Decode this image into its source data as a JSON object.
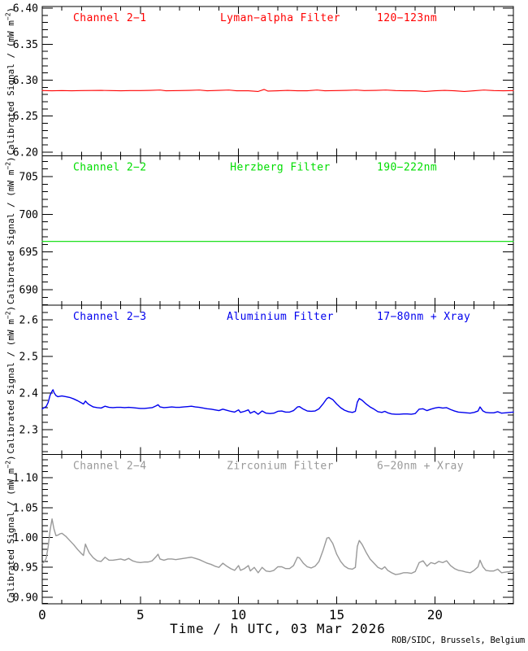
{
  "page": {
    "background": "#ffffff",
    "frame_color": "#000000",
    "text_color": "#000000"
  },
  "footer": {
    "credit": "ROB/SIDC, Brussels, Belgium"
  },
  "xaxis": {
    "title": "Time / h UTC, 03 Mar 2026",
    "range": [
      0,
      24
    ],
    "major_ticks": [
      0,
      5,
      10,
      15,
      20
    ],
    "major_tick_labels": [
      "0",
      "5",
      "10",
      "15",
      "20"
    ],
    "minor_step": 1
  },
  "ylabel": {
    "prefix": "Calibrated Signal / (mW m",
    "superscript": "−2",
    "suffix": ")"
  },
  "chart_data": [
    {
      "type": "line",
      "channel": "Channel 2−1",
      "filter": "Lyman−alpha Filter",
      "band": "120−123nm",
      "color": "#ff0000",
      "ylim": [
        6.1949,
        6.4023
      ],
      "yticks": [
        6.2,
        6.25,
        6.3,
        6.35,
        6.4
      ],
      "ytick_labels": [
        "6.20",
        "6.25",
        "6.30",
        "6.35",
        "6.40"
      ],
      "y_minor_step": 0.01,
      "points": [
        [
          0,
          6.2855
        ],
        [
          0.5,
          6.2853
        ],
        [
          1,
          6.2855
        ],
        [
          1.5,
          6.2853
        ],
        [
          2,
          6.2855
        ],
        [
          2.5,
          6.2857
        ],
        [
          3,
          6.2858
        ],
        [
          3.5,
          6.2855
        ],
        [
          4,
          6.2853
        ],
        [
          4.5,
          6.2855
        ],
        [
          5,
          6.2855
        ],
        [
          5.5,
          6.2858
        ],
        [
          6,
          6.2863
        ],
        [
          6.3,
          6.2853
        ],
        [
          7,
          6.2855
        ],
        [
          7.5,
          6.2858
        ],
        [
          8,
          6.2863
        ],
        [
          8.4,
          6.2853
        ],
        [
          9,
          6.2858
        ],
        [
          9.5,
          6.2863
        ],
        [
          9.9,
          6.2853
        ],
        [
          10.5,
          6.2853
        ],
        [
          11,
          6.2843
        ],
        [
          11.3,
          6.2871
        ],
        [
          11.5,
          6.2848
        ],
        [
          12,
          6.2853
        ],
        [
          12.5,
          6.2858
        ],
        [
          13,
          6.2853
        ],
        [
          13.5,
          6.2853
        ],
        [
          14,
          6.2863
        ],
        [
          14.4,
          6.2853
        ],
        [
          15,
          6.2855
        ],
        [
          15.5,
          6.2858
        ],
        [
          16,
          6.2863
        ],
        [
          16.4,
          6.2855
        ],
        [
          17,
          6.2858
        ],
        [
          17.5,
          6.2863
        ],
        [
          18,
          6.2855
        ],
        [
          18.5,
          6.2853
        ],
        [
          19,
          6.2853
        ],
        [
          19.5,
          6.2843
        ],
        [
          20,
          6.2853
        ],
        [
          20.5,
          6.2858
        ],
        [
          21,
          6.2853
        ],
        [
          21.5,
          6.2843
        ],
        [
          22,
          6.2853
        ],
        [
          22.5,
          6.2863
        ],
        [
          23,
          6.2855
        ],
        [
          23.5,
          6.2853
        ],
        [
          24,
          6.2855
        ]
      ]
    },
    {
      "type": "line",
      "channel": "Channel 2−2",
      "filter": "Herzberg Filter",
      "band": "190−222nm",
      "color": "#00dd00",
      "ylim": [
        687.95,
        707.75
      ],
      "yticks": [
        690,
        695,
        700,
        705
      ],
      "ytick_labels": [
        "690",
        "695",
        "700",
        "705"
      ],
      "y_minor_step": 1,
      "points": [
        [
          0,
          696.4
        ],
        [
          24,
          696.4
        ]
      ]
    },
    {
      "type": "line",
      "channel": "Channel 2−3",
      "filter": "Aluminium Filter",
      "band": "17−80nm + Xray",
      "color": "#0000ee",
      "ylim": [
        2.2322,
        2.64
      ],
      "yticks": [
        2.3,
        2.4,
        2.5,
        2.6
      ],
      "ytick_labels": [
        "2.3",
        "2.4",
        "2.5",
        "2.6"
      ],
      "y_minor_step": 0.02,
      "points": [
        [
          0,
          2.357
        ],
        [
          0.1,
          2.36
        ],
        [
          0.2,
          2.363
        ],
        [
          0.3,
          2.374
        ],
        [
          0.4,
          2.394
        ],
        [
          0.5,
          2.405
        ],
        [
          0.55,
          2.409
        ],
        [
          0.6,
          2.401
        ],
        [
          0.7,
          2.393
        ],
        [
          0.8,
          2.39
        ],
        [
          1,
          2.392
        ],
        [
          1.2,
          2.39
        ],
        [
          1.4,
          2.388
        ],
        [
          1.6,
          2.384
        ],
        [
          1.8,
          2.379
        ],
        [
          2,
          2.373
        ],
        [
          2.1,
          2.37
        ],
        [
          2.2,
          2.378
        ],
        [
          2.3,
          2.372
        ],
        [
          2.4,
          2.368
        ],
        [
          2.6,
          2.362
        ],
        [
          2.8,
          2.36
        ],
        [
          3,
          2.359
        ],
        [
          3.2,
          2.364
        ],
        [
          3.4,
          2.361
        ],
        [
          3.6,
          2.36
        ],
        [
          3.8,
          2.361
        ],
        [
          4,
          2.361
        ],
        [
          4.2,
          2.36
        ],
        [
          4.4,
          2.361
        ],
        [
          4.6,
          2.36
        ],
        [
          4.8,
          2.359
        ],
        [
          5,
          2.358
        ],
        [
          5.2,
          2.358
        ],
        [
          5.4,
          2.359
        ],
        [
          5.6,
          2.36
        ],
        [
          5.8,
          2.365
        ],
        [
          5.9,
          2.368
        ],
        [
          6,
          2.362
        ],
        [
          6.2,
          2.36
        ],
        [
          6.4,
          2.361
        ],
        [
          6.6,
          2.362
        ],
        [
          6.8,
          2.361
        ],
        [
          7,
          2.361
        ],
        [
          7.2,
          2.362
        ],
        [
          7.4,
          2.363
        ],
        [
          7.6,
          2.364
        ],
        [
          7.8,
          2.362
        ],
        [
          8,
          2.361
        ],
        [
          8.2,
          2.359
        ],
        [
          8.4,
          2.357
        ],
        [
          8.6,
          2.356
        ],
        [
          8.8,
          2.354
        ],
        [
          9,
          2.352
        ],
        [
          9.2,
          2.356
        ],
        [
          9.4,
          2.353
        ],
        [
          9.6,
          2.35
        ],
        [
          9.8,
          2.348
        ],
        [
          10,
          2.354
        ],
        [
          10.1,
          2.347
        ],
        [
          10.3,
          2.35
        ],
        [
          10.5,
          2.354
        ],
        [
          10.6,
          2.345
        ],
        [
          10.8,
          2.35
        ],
        [
          11,
          2.342
        ],
        [
          11.2,
          2.351
        ],
        [
          11.4,
          2.345
        ],
        [
          11.6,
          2.344
        ],
        [
          11.8,
          2.345
        ],
        [
          12,
          2.35
        ],
        [
          12.2,
          2.351
        ],
        [
          12.4,
          2.348
        ],
        [
          12.6,
          2.348
        ],
        [
          12.8,
          2.352
        ],
        [
          13,
          2.362
        ],
        [
          13.1,
          2.363
        ],
        [
          13.3,
          2.356
        ],
        [
          13.5,
          2.351
        ],
        [
          13.7,
          2.35
        ],
        [
          13.9,
          2.351
        ],
        [
          14.1,
          2.357
        ],
        [
          14.3,
          2.37
        ],
        [
          14.5,
          2.385
        ],
        [
          14.6,
          2.388
        ],
        [
          14.8,
          2.382
        ],
        [
          15,
          2.37
        ],
        [
          15.2,
          2.36
        ],
        [
          15.4,
          2.353
        ],
        [
          15.6,
          2.349
        ],
        [
          15.8,
          2.347
        ],
        [
          15.95,
          2.35
        ],
        [
          16.05,
          2.375
        ],
        [
          16.15,
          2.385
        ],
        [
          16.3,
          2.38
        ],
        [
          16.5,
          2.37
        ],
        [
          16.7,
          2.362
        ],
        [
          16.9,
          2.356
        ],
        [
          17.1,
          2.349
        ],
        [
          17.3,
          2.347
        ],
        [
          17.45,
          2.35
        ],
        [
          17.6,
          2.346
        ],
        [
          17.8,
          2.343
        ],
        [
          18,
          2.342
        ],
        [
          18.2,
          2.342
        ],
        [
          18.4,
          2.343
        ],
        [
          18.6,
          2.343
        ],
        [
          18.8,
          2.342
        ],
        [
          19,
          2.344
        ],
        [
          19.2,
          2.356
        ],
        [
          19.4,
          2.357
        ],
        [
          19.6,
          2.352
        ],
        [
          19.8,
          2.356
        ],
        [
          20,
          2.359
        ],
        [
          20.2,
          2.361
        ],
        [
          20.4,
          2.359
        ],
        [
          20.6,
          2.36
        ],
        [
          20.8,
          2.355
        ],
        [
          21,
          2.351
        ],
        [
          21.2,
          2.348
        ],
        [
          21.4,
          2.347
        ],
        [
          21.6,
          2.346
        ],
        [
          21.8,
          2.345
        ],
        [
          22,
          2.347
        ],
        [
          22.2,
          2.351
        ],
        [
          22.3,
          2.362
        ],
        [
          22.45,
          2.351
        ],
        [
          22.6,
          2.347
        ],
        [
          22.8,
          2.346
        ],
        [
          23,
          2.346
        ],
        [
          23.2,
          2.349
        ],
        [
          23.4,
          2.345
        ],
        [
          23.6,
          2.346
        ],
        [
          23.8,
          2.347
        ],
        [
          24,
          2.348
        ]
      ]
    },
    {
      "type": "line",
      "channel": "Channel 2−4",
      "filter": "Zirconium Filter",
      "band": "6−20nm + Xray",
      "color": "#999999",
      "ylim": [
        0.8891,
        1.1388
      ],
      "yticks": [
        0.9,
        0.95,
        1.0,
        1.05,
        1.1
      ],
      "ytick_labels": [
        "0.90",
        "0.95",
        "1.00",
        "1.05",
        "1.10"
      ],
      "y_minor_step": 0.01,
      "points": [
        [
          0,
          0.957
        ],
        [
          0.1,
          0.959
        ],
        [
          0.2,
          0.965
        ],
        [
          0.3,
          0.984
        ],
        [
          0.4,
          1.012
        ],
        [
          0.5,
          1.031
        ],
        [
          0.6,
          1.014
        ],
        [
          0.7,
          1.003
        ],
        [
          0.8,
          1.004
        ],
        [
          0.9,
          1.006
        ],
        [
          1,
          1.007
        ],
        [
          1.2,
          1.002
        ],
        [
          1.4,
          0.995
        ],
        [
          1.6,
          0.988
        ],
        [
          1.8,
          0.98
        ],
        [
          2,
          0.973
        ],
        [
          2.1,
          0.97
        ],
        [
          2.2,
          0.989
        ],
        [
          2.3,
          0.981
        ],
        [
          2.4,
          0.974
        ],
        [
          2.6,
          0.966
        ],
        [
          2.8,
          0.961
        ],
        [
          3,
          0.96
        ],
        [
          3.2,
          0.967
        ],
        [
          3.4,
          0.962
        ],
        [
          3.6,
          0.962
        ],
        [
          3.8,
          0.963
        ],
        [
          4,
          0.964
        ],
        [
          4.2,
          0.962
        ],
        [
          4.4,
          0.965
        ],
        [
          4.6,
          0.961
        ],
        [
          4.8,
          0.959
        ],
        [
          5,
          0.958
        ],
        [
          5.2,
          0.959
        ],
        [
          5.4,
          0.959
        ],
        [
          5.6,
          0.961
        ],
        [
          5.8,
          0.968
        ],
        [
          5.9,
          0.972
        ],
        [
          6,
          0.964
        ],
        [
          6.2,
          0.962
        ],
        [
          6.4,
          0.964
        ],
        [
          6.6,
          0.964
        ],
        [
          6.8,
          0.963
        ],
        [
          7,
          0.964
        ],
        [
          7.2,
          0.965
        ],
        [
          7.4,
          0.966
        ],
        [
          7.6,
          0.967
        ],
        [
          7.8,
          0.965
        ],
        [
          8,
          0.963
        ],
        [
          8.2,
          0.96
        ],
        [
          8.4,
          0.957
        ],
        [
          8.6,
          0.955
        ],
        [
          8.8,
          0.952
        ],
        [
          9,
          0.95
        ],
        [
          9.2,
          0.957
        ],
        [
          9.4,
          0.952
        ],
        [
          9.6,
          0.948
        ],
        [
          9.8,
          0.945
        ],
        [
          10,
          0.953
        ],
        [
          10.1,
          0.945
        ],
        [
          10.3,
          0.948
        ],
        [
          10.5,
          0.953
        ],
        [
          10.6,
          0.944
        ],
        [
          10.8,
          0.95
        ],
        [
          11,
          0.941
        ],
        [
          11.2,
          0.95
        ],
        [
          11.4,
          0.944
        ],
        [
          11.6,
          0.943
        ],
        [
          11.8,
          0.945
        ],
        [
          12,
          0.951
        ],
        [
          12.2,
          0.951
        ],
        [
          12.4,
          0.948
        ],
        [
          12.6,
          0.948
        ],
        [
          12.8,
          0.953
        ],
        [
          13,
          0.967
        ],
        [
          13.1,
          0.966
        ],
        [
          13.3,
          0.957
        ],
        [
          13.5,
          0.951
        ],
        [
          13.7,
          0.949
        ],
        [
          13.9,
          0.952
        ],
        [
          14.1,
          0.96
        ],
        [
          14.3,
          0.978
        ],
        [
          14.5,
          0.999
        ],
        [
          14.6,
          1.0
        ],
        [
          14.8,
          0.99
        ],
        [
          15,
          0.972
        ],
        [
          15.2,
          0.96
        ],
        [
          15.4,
          0.952
        ],
        [
          15.6,
          0.948
        ],
        [
          15.8,
          0.947
        ],
        [
          15.95,
          0.95
        ],
        [
          16.05,
          0.985
        ],
        [
          16.15,
          0.995
        ],
        [
          16.3,
          0.988
        ],
        [
          16.5,
          0.975
        ],
        [
          16.7,
          0.964
        ],
        [
          16.9,
          0.957
        ],
        [
          17.1,
          0.95
        ],
        [
          17.3,
          0.947
        ],
        [
          17.45,
          0.951
        ],
        [
          17.6,
          0.945
        ],
        [
          17.8,
          0.941
        ],
        [
          18,
          0.938
        ],
        [
          18.2,
          0.939
        ],
        [
          18.4,
          0.941
        ],
        [
          18.6,
          0.941
        ],
        [
          18.8,
          0.94
        ],
        [
          19,
          0.943
        ],
        [
          19.2,
          0.958
        ],
        [
          19.4,
          0.961
        ],
        [
          19.6,
          0.952
        ],
        [
          19.8,
          0.958
        ],
        [
          20,
          0.956
        ],
        [
          20.2,
          0.96
        ],
        [
          20.4,
          0.958
        ],
        [
          20.6,
          0.961
        ],
        [
          20.8,
          0.953
        ],
        [
          21,
          0.948
        ],
        [
          21.2,
          0.945
        ],
        [
          21.4,
          0.944
        ],
        [
          21.6,
          0.942
        ],
        [
          21.8,
          0.941
        ],
        [
          22,
          0.945
        ],
        [
          22.2,
          0.951
        ],
        [
          22.3,
          0.962
        ],
        [
          22.45,
          0.951
        ],
        [
          22.6,
          0.945
        ],
        [
          22.8,
          0.944
        ],
        [
          23,
          0.944
        ],
        [
          23.2,
          0.947
        ],
        [
          23.4,
          0.941
        ],
        [
          23.6,
          0.942
        ],
        [
          23.8,
          0.943
        ],
        [
          24,
          0.945
        ]
      ]
    }
  ]
}
